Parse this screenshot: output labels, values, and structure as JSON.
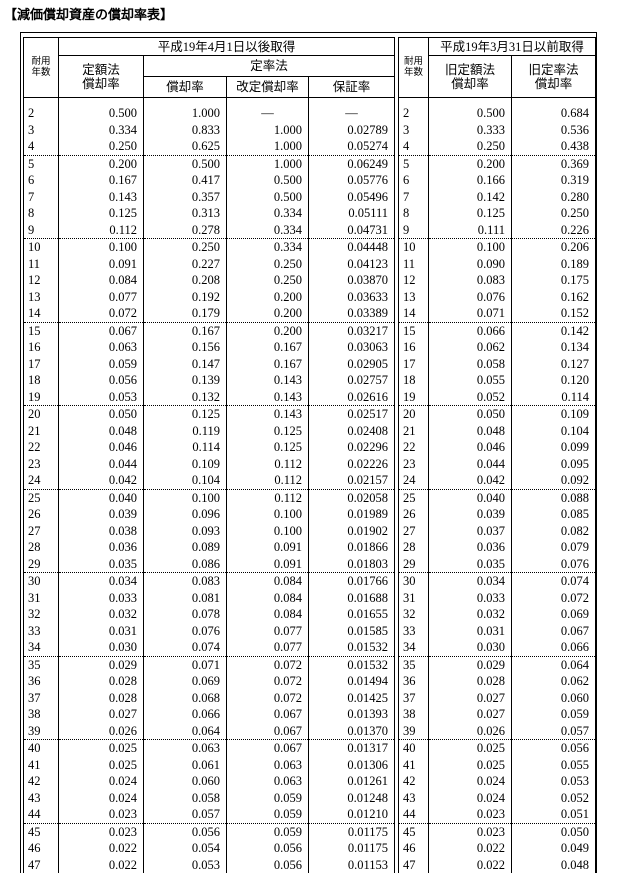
{
  "title": "【減価償却資産の償却率表】",
  "left_header": {
    "years": "耐用\n年数",
    "period": "平成19年4月1日以後取得",
    "straight": "定額法\n償却率",
    "declining": "定率法",
    "rate": "償却率",
    "revised": "改定償却率",
    "guarantee": "保証率"
  },
  "right_header": {
    "years": "耐用\n年数",
    "period": "平成19年3月31日以前取得",
    "old_straight": "旧定額法\n償却率",
    "old_declining": "旧定率法\n償却率"
  },
  "table": {
    "rows": [
      [
        "2",
        "0.500",
        "1.000",
        "—",
        "—",
        "2",
        "0.500",
        "0.684"
      ],
      [
        "3",
        "0.334",
        "0.833",
        "1.000",
        "0.02789",
        "3",
        "0.333",
        "0.536"
      ],
      [
        "4",
        "0.250",
        "0.625",
        "1.000",
        "0.05274",
        "4",
        "0.250",
        "0.438"
      ],
      [
        "5",
        "0.200",
        "0.500",
        "1.000",
        "0.06249",
        "5",
        "0.200",
        "0.369"
      ],
      [
        "6",
        "0.167",
        "0.417",
        "0.500",
        "0.05776",
        "6",
        "0.166",
        "0.319"
      ],
      [
        "7",
        "0.143",
        "0.357",
        "0.500",
        "0.05496",
        "7",
        "0.142",
        "0.280"
      ],
      [
        "8",
        "0.125",
        "0.313",
        "0.334",
        "0.05111",
        "8",
        "0.125",
        "0.250"
      ],
      [
        "9",
        "0.112",
        "0.278",
        "0.334",
        "0.04731",
        "9",
        "0.111",
        "0.226"
      ],
      [
        "10",
        "0.100",
        "0.250",
        "0.334",
        "0.04448",
        "10",
        "0.100",
        "0.206"
      ],
      [
        "11",
        "0.091",
        "0.227",
        "0.250",
        "0.04123",
        "11",
        "0.090",
        "0.189"
      ],
      [
        "12",
        "0.084",
        "0.208",
        "0.250",
        "0.03870",
        "12",
        "0.083",
        "0.175"
      ],
      [
        "13",
        "0.077",
        "0.192",
        "0.200",
        "0.03633",
        "13",
        "0.076",
        "0.162"
      ],
      [
        "14",
        "0.072",
        "0.179",
        "0.200",
        "0.03389",
        "14",
        "0.071",
        "0.152"
      ],
      [
        "15",
        "0.067",
        "0.167",
        "0.200",
        "0.03217",
        "15",
        "0.066",
        "0.142"
      ],
      [
        "16",
        "0.063",
        "0.156",
        "0.167",
        "0.03063",
        "16",
        "0.062",
        "0.134"
      ],
      [
        "17",
        "0.059",
        "0.147",
        "0.167",
        "0.02905",
        "17",
        "0.058",
        "0.127"
      ],
      [
        "18",
        "0.056",
        "0.139",
        "0.143",
        "0.02757",
        "18",
        "0.055",
        "0.120"
      ],
      [
        "19",
        "0.053",
        "0.132",
        "0.143",
        "0.02616",
        "19",
        "0.052",
        "0.114"
      ],
      [
        "20",
        "0.050",
        "0.125",
        "0.143",
        "0.02517",
        "20",
        "0.050",
        "0.109"
      ],
      [
        "21",
        "0.048",
        "0.119",
        "0.125",
        "0.02408",
        "21",
        "0.048",
        "0.104"
      ],
      [
        "22",
        "0.046",
        "0.114",
        "0.125",
        "0.02296",
        "22",
        "0.046",
        "0.099"
      ],
      [
        "23",
        "0.044",
        "0.109",
        "0.112",
        "0.02226",
        "23",
        "0.044",
        "0.095"
      ],
      [
        "24",
        "0.042",
        "0.104",
        "0.112",
        "0.02157",
        "24",
        "0.042",
        "0.092"
      ],
      [
        "25",
        "0.040",
        "0.100",
        "0.112",
        "0.02058",
        "25",
        "0.040",
        "0.088"
      ],
      [
        "26",
        "0.039",
        "0.096",
        "0.100",
        "0.01989",
        "26",
        "0.039",
        "0.085"
      ],
      [
        "27",
        "0.038",
        "0.093",
        "0.100",
        "0.01902",
        "27",
        "0.037",
        "0.082"
      ],
      [
        "28",
        "0.036",
        "0.089",
        "0.091",
        "0.01866",
        "28",
        "0.036",
        "0.079"
      ],
      [
        "29",
        "0.035",
        "0.086",
        "0.091",
        "0.01803",
        "29",
        "0.035",
        "0.076"
      ],
      [
        "30",
        "0.034",
        "0.083",
        "0.084",
        "0.01766",
        "30",
        "0.034",
        "0.074"
      ],
      [
        "31",
        "0.033",
        "0.081",
        "0.084",
        "0.01688",
        "31",
        "0.033",
        "0.072"
      ],
      [
        "32",
        "0.032",
        "0.078",
        "0.084",
        "0.01655",
        "32",
        "0.032",
        "0.069"
      ],
      [
        "33",
        "0.031",
        "0.076",
        "0.077",
        "0.01585",
        "33",
        "0.031",
        "0.067"
      ],
      [
        "34",
        "0.030",
        "0.074",
        "0.077",
        "0.01532",
        "34",
        "0.030",
        "0.066"
      ],
      [
        "35",
        "0.029",
        "0.071",
        "0.072",
        "0.01532",
        "35",
        "0.029",
        "0.064"
      ],
      [
        "36",
        "0.028",
        "0.069",
        "0.072",
        "0.01494",
        "36",
        "0.028",
        "0.062"
      ],
      [
        "37",
        "0.028",
        "0.068",
        "0.072",
        "0.01425",
        "37",
        "0.027",
        "0.060"
      ],
      [
        "38",
        "0.027",
        "0.066",
        "0.067",
        "0.01393",
        "38",
        "0.027",
        "0.059"
      ],
      [
        "39",
        "0.026",
        "0.064",
        "0.067",
        "0.01370",
        "39",
        "0.026",
        "0.057"
      ],
      [
        "40",
        "0.025",
        "0.063",
        "0.067",
        "0.01317",
        "40",
        "0.025",
        "0.056"
      ],
      [
        "41",
        "0.025",
        "0.061",
        "0.063",
        "0.01306",
        "41",
        "0.025",
        "0.055"
      ],
      [
        "42",
        "0.024",
        "0.060",
        "0.063",
        "0.01261",
        "42",
        "0.024",
        "0.053"
      ],
      [
        "43",
        "0.024",
        "0.058",
        "0.059",
        "0.01248",
        "43",
        "0.024",
        "0.052"
      ],
      [
        "44",
        "0.023",
        "0.057",
        "0.059",
        "0.01210",
        "44",
        "0.023",
        "0.051"
      ],
      [
        "45",
        "0.023",
        "0.056",
        "0.059",
        "0.01175",
        "45",
        "0.023",
        "0.050"
      ],
      [
        "46",
        "0.022",
        "0.054",
        "0.056",
        "0.01175",
        "46",
        "0.022",
        "0.049"
      ],
      [
        "47",
        "0.022",
        "0.053",
        "0.056",
        "0.01153",
        "47",
        "0.022",
        "0.048"
      ]
    ]
  }
}
